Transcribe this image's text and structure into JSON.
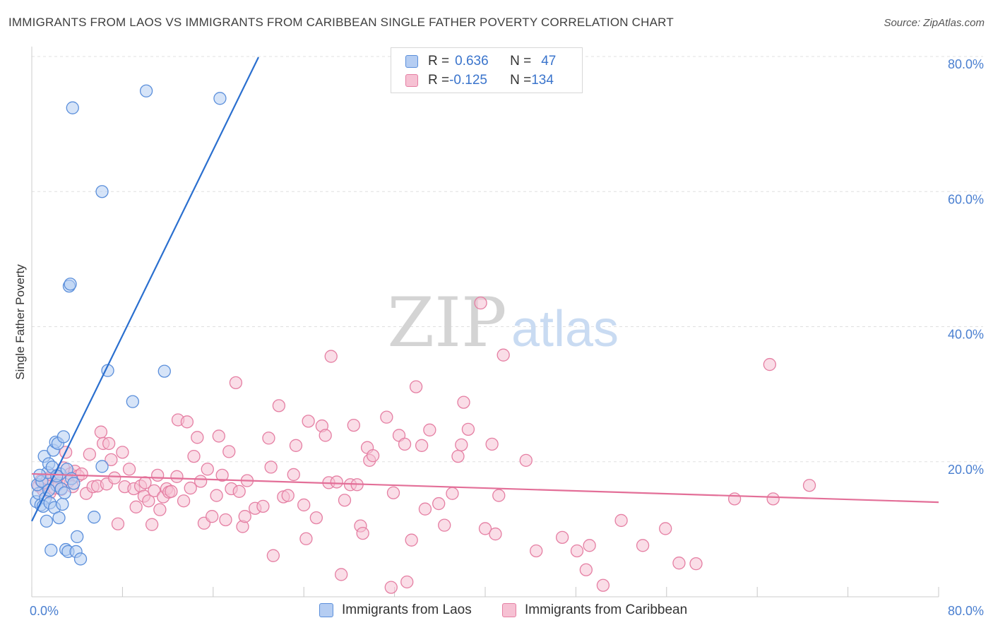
{
  "header": {
    "title": "IMMIGRANTS FROM LAOS VS IMMIGRANTS FROM CARIBBEAN SINGLE FATHER POVERTY CORRELATION CHART",
    "source": "Source: ZipAtlas.com"
  },
  "watermark": {
    "zip": "ZIP",
    "atlas": "atlas"
  },
  "legend": {
    "rows": [
      {
        "r_label": "R = ",
        "r_value": "0.636",
        "n_label": "N = ",
        "n_value": "47"
      },
      {
        "r_label": "R = ",
        "r_value": "-0.125",
        "n_label": "N = ",
        "n_value": "134"
      }
    ]
  },
  "colors": {
    "laos_fill": "#b5cdf2",
    "laos_stroke": "#5b8fdb",
    "laos_line": "#2a6fcf",
    "carib_fill": "#f6c1d3",
    "carib_stroke": "#e57fa3",
    "carib_line": "#e36f98",
    "grid": "#e0e0e0",
    "tick_text": "#4a7fd0"
  },
  "chart_data": {
    "type": "scatter",
    "title": "IMMIGRANTS FROM LAOS VS IMMIGRANTS FROM CARIBBEAN SINGLE FATHER POVERTY CORRELATION CHART",
    "xlabel": "",
    "ylabel": "Single Father Poverty",
    "xlim": [
      0,
      80
    ],
    "ylim": [
      0,
      80
    ],
    "x_tick_labels": [
      "0.0%",
      "80.0%"
    ],
    "y_ticks": [
      20,
      40,
      60,
      80
    ],
    "y_tick_labels": [
      "20.0%",
      "40.0%",
      "60.0%",
      "80.0%"
    ],
    "grid": true,
    "legend_position": "top-center",
    "series": [
      {
        "name": "Immigrants from Laos",
        "R": 0.636,
        "N": 47,
        "trend": [
          [
            0,
            11.2
          ],
          [
            20,
            79.9
          ]
        ],
        "points": [
          [
            0.4,
            14.1
          ],
          [
            0.6,
            15.3
          ],
          [
            0.5,
            16.6
          ],
          [
            0.8,
            13.6
          ],
          [
            0.9,
            17.1
          ],
          [
            1.2,
            14.6
          ],
          [
            1.0,
            13.4
          ],
          [
            1.3,
            11.2
          ],
          [
            1.1,
            20.8
          ],
          [
            1.4,
            18.4
          ],
          [
            1.5,
            19.7
          ],
          [
            1.6,
            13.9
          ],
          [
            1.7,
            6.9
          ],
          [
            1.8,
            19.2
          ],
          [
            1.9,
            21.7
          ],
          [
            2.0,
            13.2
          ],
          [
            2.1,
            22.9
          ],
          [
            2.2,
            16.5
          ],
          [
            2.3,
            22.7
          ],
          [
            2.4,
            11.7
          ],
          [
            2.5,
            18.2
          ],
          [
            2.6,
            16.0
          ],
          [
            2.7,
            13.7
          ],
          [
            2.8,
            23.7
          ],
          [
            2.9,
            15.4
          ],
          [
            3.0,
            7.0
          ],
          [
            3.1,
            18.9
          ],
          [
            3.2,
            6.7
          ],
          [
            3.3,
            46.0
          ],
          [
            3.4,
            46.3
          ],
          [
            3.5,
            17.5
          ],
          [
            3.6,
            72.4
          ],
          [
            3.7,
            16.8
          ],
          [
            3.9,
            6.7
          ],
          [
            4.0,
            8.9
          ],
          [
            4.3,
            5.6
          ],
          [
            5.5,
            11.8
          ],
          [
            6.2,
            19.3
          ],
          [
            6.2,
            60.0
          ],
          [
            6.7,
            33.5
          ],
          [
            8.9,
            28.9
          ],
          [
            10.1,
            74.9
          ],
          [
            11.7,
            33.4
          ],
          [
            16.6,
            73.8
          ],
          [
            0.7,
            18.0
          ],
          [
            1.5,
            15.8
          ],
          [
            2.2,
            17.9
          ]
        ]
      },
      {
        "name": "Immigrants from Caribbean",
        "R": -0.125,
        "N": 134,
        "trend": [
          [
            0,
            18.2
          ],
          [
            80,
            14.0
          ]
        ],
        "points": [
          [
            0.6,
            16.4
          ],
          [
            0.8,
            17.2
          ],
          [
            1.0,
            15.8
          ],
          [
            1.2,
            16.9
          ],
          [
            1.4,
            17.5
          ],
          [
            1.6,
            15.4
          ],
          [
            1.8,
            18.0
          ],
          [
            2.0,
            16.1
          ],
          [
            2.2,
            17.7
          ],
          [
            2.4,
            16.8
          ],
          [
            2.6,
            15.9
          ],
          [
            2.8,
            19.1
          ],
          [
            3.0,
            21.4
          ],
          [
            3.2,
            17.0
          ],
          [
            3.4,
            18.2
          ],
          [
            3.6,
            16.3
          ],
          [
            3.8,
            18.6
          ],
          [
            4.1,
            17.9
          ],
          [
            4.4,
            18.2
          ],
          [
            4.8,
            15.3
          ],
          [
            5.1,
            21.1
          ],
          [
            5.4,
            16.3
          ],
          [
            5.8,
            16.4
          ],
          [
            6.1,
            24.4
          ],
          [
            6.3,
            22.7
          ],
          [
            6.6,
            16.7
          ],
          [
            6.8,
            22.7
          ],
          [
            7.0,
            20.3
          ],
          [
            7.3,
            17.6
          ],
          [
            7.6,
            10.8
          ],
          [
            8.0,
            21.4
          ],
          [
            8.2,
            16.3
          ],
          [
            8.6,
            18.9
          ],
          [
            9.0,
            16.0
          ],
          [
            9.2,
            13.3
          ],
          [
            9.6,
            16.4
          ],
          [
            9.9,
            14.9
          ],
          [
            10.0,
            16.9
          ],
          [
            10.3,
            14.2
          ],
          [
            10.6,
            10.7
          ],
          [
            10.8,
            15.7
          ],
          [
            11.1,
            18.0
          ],
          [
            11.3,
            12.9
          ],
          [
            11.6,
            14.8
          ],
          [
            11.9,
            16.0
          ],
          [
            12.1,
            15.5
          ],
          [
            12.3,
            15.6
          ],
          [
            12.8,
            17.8
          ],
          [
            12.9,
            26.2
          ],
          [
            13.4,
            14.2
          ],
          [
            13.7,
            25.9
          ],
          [
            14.0,
            16.1
          ],
          [
            14.3,
            20.8
          ],
          [
            14.6,
            23.6
          ],
          [
            14.9,
            17.1
          ],
          [
            15.2,
            10.9
          ],
          [
            15.5,
            18.9
          ],
          [
            15.9,
            11.9
          ],
          [
            16.3,
            15.0
          ],
          [
            16.5,
            23.8
          ],
          [
            16.8,
            18.0
          ],
          [
            17.1,
            11.4
          ],
          [
            17.4,
            21.5
          ],
          [
            17.6,
            16.0
          ],
          [
            18.0,
            31.7
          ],
          [
            18.3,
            15.6
          ],
          [
            18.6,
            10.4
          ],
          [
            18.8,
            11.9
          ],
          [
            19.0,
            17.2
          ],
          [
            19.7,
            13.1
          ],
          [
            20.4,
            13.4
          ],
          [
            20.9,
            23.5
          ],
          [
            21.1,
            19.2
          ],
          [
            21.3,
            6.1
          ],
          [
            21.8,
            28.3
          ],
          [
            22.2,
            14.8
          ],
          [
            22.6,
            15.0
          ],
          [
            23.1,
            18.1
          ],
          [
            23.3,
            22.4
          ],
          [
            24.0,
            13.6
          ],
          [
            24.2,
            8.6
          ],
          [
            24.4,
            26.0
          ],
          [
            25.1,
            11.7
          ],
          [
            25.6,
            25.3
          ],
          [
            25.9,
            23.9
          ],
          [
            26.2,
            16.9
          ],
          [
            26.4,
            35.6
          ],
          [
            26.9,
            17.0
          ],
          [
            27.3,
            3.3
          ],
          [
            27.6,
            14.3
          ],
          [
            28.1,
            16.6
          ],
          [
            28.4,
            25.4
          ],
          [
            28.7,
            16.6
          ],
          [
            29.0,
            10.5
          ],
          [
            29.2,
            9.4
          ],
          [
            29.6,
            22.1
          ],
          [
            29.8,
            20.2
          ],
          [
            30.1,
            20.9
          ],
          [
            31.3,
            26.6
          ],
          [
            31.7,
            1.4
          ],
          [
            31.9,
            15.4
          ],
          [
            32.4,
            23.9
          ],
          [
            32.9,
            22.6
          ],
          [
            33.1,
            2.2
          ],
          [
            33.5,
            8.4
          ],
          [
            33.9,
            31.1
          ],
          [
            34.4,
            22.4
          ],
          [
            34.7,
            13.0
          ],
          [
            35.1,
            24.7
          ],
          [
            35.9,
            13.8
          ],
          [
            36.4,
            10.6
          ],
          [
            37.1,
            15.3
          ],
          [
            37.6,
            20.8
          ],
          [
            37.9,
            22.5
          ],
          [
            38.1,
            28.8
          ],
          [
            38.5,
            24.8
          ],
          [
            39.6,
            43.5
          ],
          [
            40.0,
            10.1
          ],
          [
            40.6,
            22.6
          ],
          [
            40.9,
            9.3
          ],
          [
            41.2,
            15.0
          ],
          [
            41.6,
            35.8
          ],
          [
            43.6,
            20.2
          ],
          [
            44.5,
            6.8
          ],
          [
            46.8,
            8.8
          ],
          [
            48.1,
            6.8
          ],
          [
            48.9,
            4.0
          ],
          [
            49.2,
            7.6
          ],
          [
            50.4,
            1.7
          ],
          [
            52.0,
            11.3
          ],
          [
            53.9,
            7.6
          ],
          [
            55.9,
            10.1
          ],
          [
            57.1,
            5.0
          ],
          [
            58.6,
            4.9
          ],
          [
            62.0,
            14.5
          ],
          [
            65.1,
            34.4
          ],
          [
            65.4,
            14.5
          ],
          [
            68.6,
            16.5
          ]
        ]
      }
    ]
  },
  "bottom_legend": {
    "laos": "Immigrants from Laos",
    "caribbean": "Immigrants from Caribbean"
  }
}
